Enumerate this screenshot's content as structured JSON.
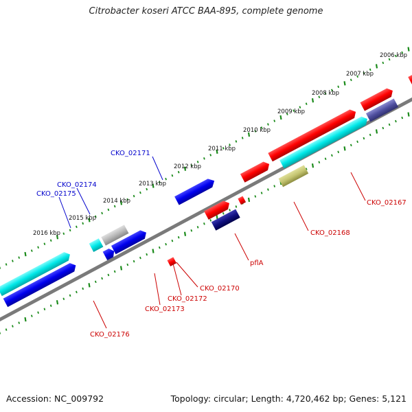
{
  "title": "Citrobacter koseri ATCC BAA-895, complete genome",
  "footer": {
    "accession": "Accession: NC_009792",
    "summary": "Topology: circular; Length: 4,720,462 bp; Genes: 5,121"
  },
  "colors": {
    "backbone": "#8a8a8a",
    "ruler": "#1a8a1a",
    "label_blue": "#0000cc",
    "label_red": "#cc0000"
  },
  "ruler_labels": [
    "2006 kbp",
    "2007 kbp",
    "2008 kbp",
    "2009 kbp",
    "2010 kbp",
    "2011 kbp",
    "2012 kbp",
    "2013 kbp",
    "2014 kbp",
    "2015 kbp",
    "2016 kbp"
  ],
  "gene_labels": {
    "cko_02171": "CKO_02171",
    "cko_02174": "CKO_02174",
    "cko_02175": "CKO_02175",
    "cko_02167": "CKO_02167",
    "cko_02168": "CKO_02168",
    "pfla": "pflA",
    "cko_02170": "CKO_02170",
    "cko_02172": "CKO_02172",
    "cko_02173": "CKO_02173",
    "cko_02176": "CKO_02176"
  }
}
